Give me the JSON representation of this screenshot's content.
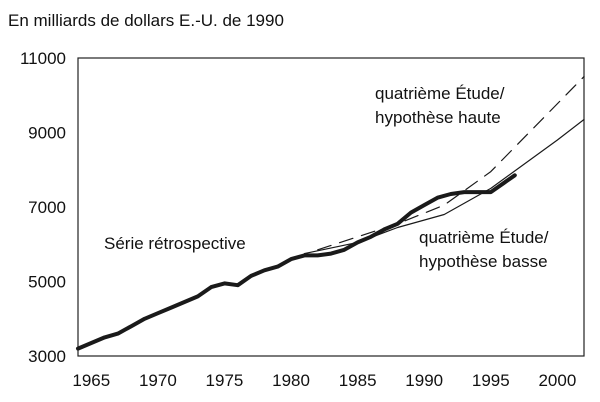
{
  "chart_data": {
    "type": "line",
    "title": "En milliards de dollars E.-U. de 1990",
    "xlabel": "",
    "ylabel": "",
    "xlim": [
      1964,
      2002
    ],
    "ylim": [
      3000,
      11000
    ],
    "x_ticks": [
      1965,
      1970,
      1975,
      1980,
      1985,
      1990,
      1995,
      2000
    ],
    "y_ticks": [
      3000,
      5000,
      7000,
      9000,
      11000
    ],
    "grid": false,
    "series": [
      {
        "name": "Série rétrospective",
        "style": "thick-solid",
        "x": [
          1964,
          1965,
          1966,
          1967,
          1968,
          1969,
          1970,
          1971,
          1972,
          1973,
          1974,
          1975,
          1976,
          1977,
          1978,
          1979,
          1980,
          1981,
          1982,
          1983,
          1984,
          1985,
          1986,
          1987,
          1988,
          1989,
          1990,
          1991,
          1992,
          1993,
          1994,
          1995,
          1996,
          1996.8
        ],
        "y": [
          3200,
          3350,
          3500,
          3600,
          3800,
          4000,
          4150,
          4300,
          4450,
          4600,
          4850,
          4950,
          4900,
          5150,
          5300,
          5400,
          5600,
          5700,
          5700,
          5750,
          5850,
          6050,
          6200,
          6400,
          6550,
          6850,
          7050,
          7250,
          7350,
          7400,
          7400,
          7400,
          7650,
          7850
        ]
      },
      {
        "name": "quatrième Étude/ hypothèse haute",
        "style": "dashed",
        "x": [
          1982,
          1985,
          1988,
          1991.5,
          1995,
          2002
        ],
        "y": [
          5850,
          6200,
          6550,
          7050,
          7950,
          10500
        ]
      },
      {
        "name": "quatrième Étude/ hypothèse basse",
        "style": "thin-solid",
        "x": [
          1981,
          1985,
          1988,
          1991.5,
          1995,
          2000,
          2002
        ],
        "y": [
          5750,
          6050,
          6450,
          6800,
          7500,
          8800,
          9350
        ]
      }
    ],
    "annotations": {
      "historical": "Série rétrospective",
      "high_line1": "quatrième Étude/",
      "high_line2": "hypothèse haute",
      "low_line1": "quatrième Étude/",
      "low_line2": "hypothèse basse"
    }
  }
}
